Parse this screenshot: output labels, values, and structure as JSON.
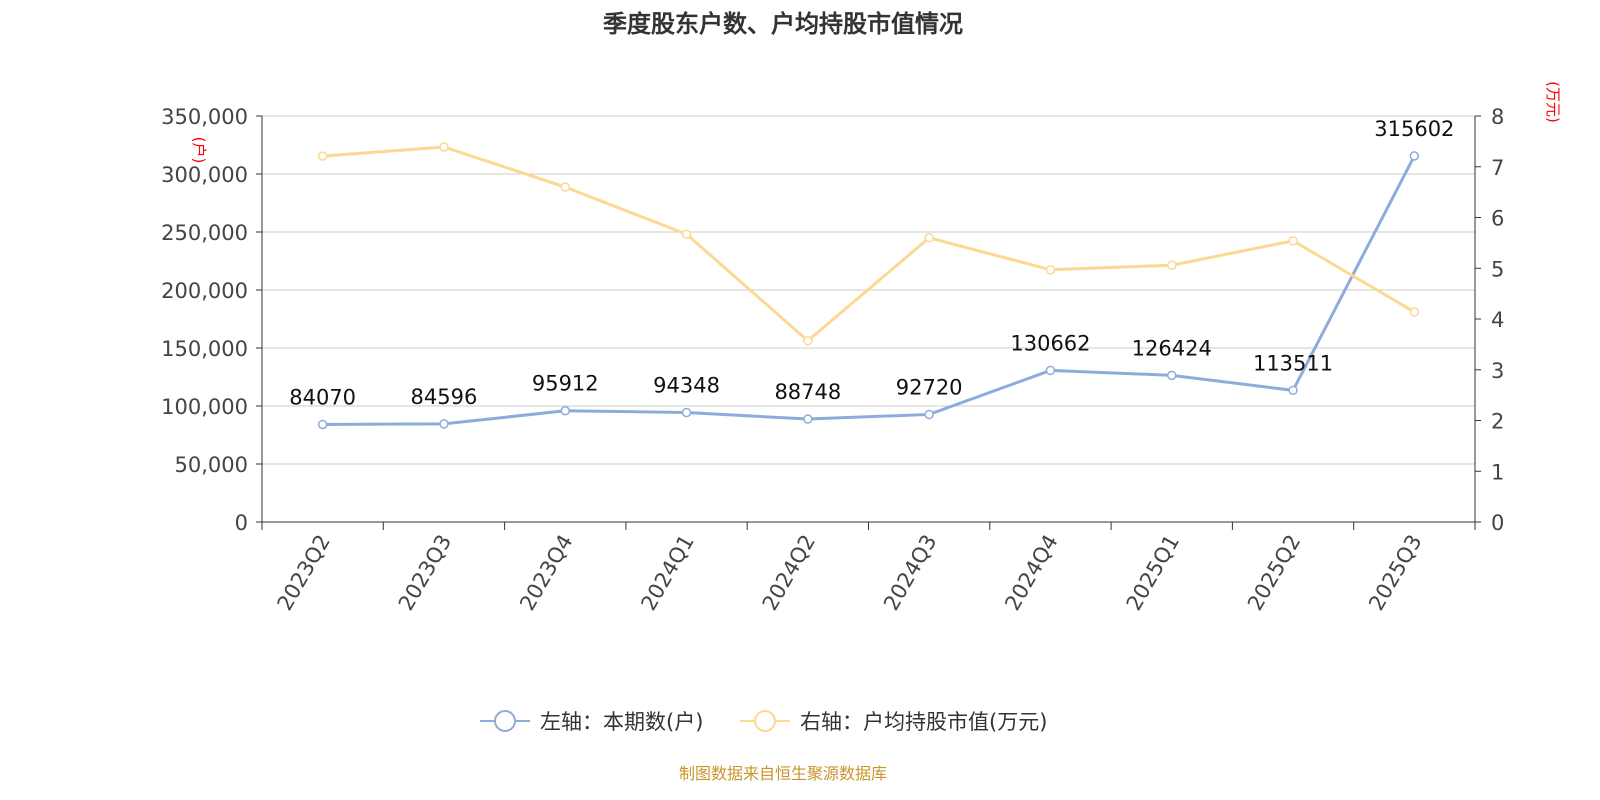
{
  "chart_data": {
    "type": "line",
    "title": "季度股东户数、户均持股市值情况",
    "categories": [
      "2023Q2",
      "2023Q3",
      "2023Q4",
      "2024Q1",
      "2024Q2",
      "2024Q3",
      "2024Q4",
      "2025Q1",
      "2025Q2",
      "2025Q3"
    ],
    "left_axis": {
      "unit_label": "(户)",
      "ylim": [
        0,
        350000
      ],
      "ticks": [
        "0",
        "50,000",
        "100,000",
        "150,000",
        "200,000",
        "250,000",
        "300,000",
        "350,000"
      ]
    },
    "right_axis": {
      "unit_label": "(万元)",
      "ylim": [
        0,
        8
      ],
      "ticks": [
        "0",
        "1",
        "2",
        "3",
        "4",
        "5",
        "6",
        "7",
        "8"
      ]
    },
    "series": [
      {
        "name": "左轴：本期数(户)",
        "axis": "left",
        "color": "#8eacdb",
        "values": [
          84070,
          84596,
          95912,
          94348,
          88748,
          92720,
          130662,
          126424,
          113511,
          315602
        ],
        "labels": [
          "84070",
          "84596",
          "95912",
          "94348",
          "88748",
          "92720",
          "130662",
          "126424",
          "113511",
          "315602"
        ]
      },
      {
        "name": "右轴：户均持股市值(万元)",
        "axis": "right",
        "color": "#fdd893",
        "values": [
          7.21,
          7.39,
          6.6,
          5.67,
          3.57,
          5.6,
          4.97,
          5.06,
          5.54,
          4.14
        ]
      }
    ],
    "grid": true,
    "legend": "bottom"
  },
  "source": "制图数据来自恒生聚源数据库"
}
